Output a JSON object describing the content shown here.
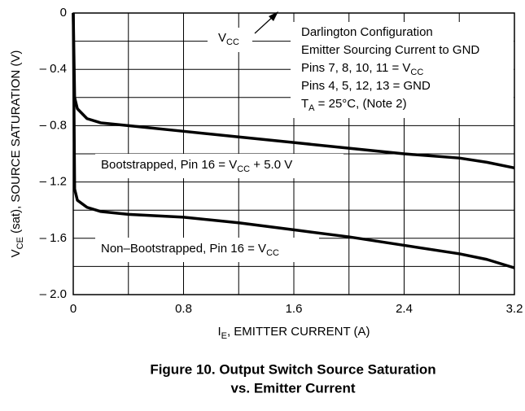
{
  "chart_data": {
    "type": "line",
    "xlabel": [
      {
        "text": "I",
        "sub": false
      },
      {
        "text": "E",
        "sub": true
      },
      {
        "text": ", EMITTER CURRENT (A)",
        "sub": false
      }
    ],
    "ylabel": [
      {
        "text": "V",
        "sub": false
      },
      {
        "text": "CE",
        "sub": true
      },
      {
        "text": " (sat), SOURCE SATURATION (V)",
        "sub": false
      }
    ],
    "caption": [
      "Figure 10. Output Switch Source Saturation",
      "vs. Emitter Current"
    ],
    "xlim": [
      0,
      3.2
    ],
    "ylim": [
      -2.0,
      0
    ],
    "xticks": [
      0,
      0.8,
      1.6,
      2.4,
      3.2
    ],
    "xticks_minor": [
      0.4,
      1.2,
      2.0,
      2.8
    ],
    "yticks": [
      0,
      {
        "value": -0.4,
        "label": "– 0.4"
      },
      {
        "value": -0.8,
        "label": "– 0.8"
      },
      {
        "value": -1.2,
        "label": "– 1.2"
      },
      {
        "value": -1.6,
        "label": "– 1.6"
      },
      {
        "value": -2.0,
        "label": "– 2.0"
      }
    ],
    "yticks_minor": [
      -0.2,
      -0.6,
      -1.0,
      -1.4,
      -1.8
    ],
    "grid": true,
    "x": [
      0,
      0.01,
      0.03,
      0.1,
      0.2,
      0.4,
      0.8,
      1.2,
      1.6,
      2.0,
      2.4,
      2.8,
      3.0,
      3.2
    ],
    "series": [
      {
        "name": [
          {
            "text": "Bootstrapped, Pin 16 = V",
            "sub": false
          },
          {
            "text": "CC",
            "sub": true
          },
          {
            "text": " + 5.0 V",
            "sub": false
          }
        ],
        "color": "#000000",
        "values": [
          0,
          -0.6,
          -0.68,
          -0.75,
          -0.78,
          -0.8,
          -0.84,
          -0.88,
          -0.92,
          -0.96,
          -1.0,
          -1.03,
          -1.06,
          -1.1
        ]
      },
      {
        "name": [
          {
            "text": "Non–Bootstrapped, Pin 16 = V",
            "sub": false
          },
          {
            "text": "CC",
            "sub": true
          }
        ],
        "color": "#000000",
        "values": [
          0,
          -1.25,
          -1.33,
          -1.38,
          -1.41,
          -1.43,
          -1.45,
          -1.49,
          -1.54,
          -1.59,
          -1.65,
          -1.71,
          -1.75,
          -1.81
        ]
      }
    ],
    "annotations": {
      "vcc": [
        {
          "text": "V",
          "sub": false
        },
        {
          "text": "CC",
          "sub": true
        }
      ],
      "conditions": [
        [
          {
            "text": "Darlington Configuration",
            "sub": false
          }
        ],
        [
          {
            "text": "Emitter Sourcing Current to GND",
            "sub": false
          }
        ],
        [
          {
            "text": "Pins 7, 8, 10, 11 = V",
            "sub": false
          },
          {
            "text": "CC",
            "sub": true
          }
        ],
        [
          {
            "text": "Pins 4, 5, 12, 13 = GND",
            "sub": false
          }
        ],
        [
          {
            "text": "T",
            "sub": false
          },
          {
            "text": "A",
            "sub": true
          },
          {
            "text": " = 25°C, (Note 2)",
            "sub": false
          }
        ]
      ]
    }
  }
}
